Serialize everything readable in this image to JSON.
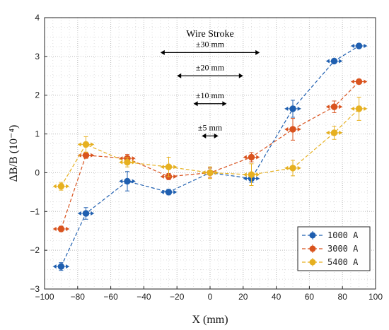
{
  "chart_data": {
    "type": "scatter",
    "title": "",
    "xlabel": "X (mm)",
    "ylabel": "ΔB/B (10⁻⁴)",
    "xlim": [
      -100,
      100
    ],
    "ylim": [
      -3,
      4
    ],
    "x_ticks": [
      "−100",
      "−80",
      "−60",
      "−40",
      "−20",
      "0",
      "20",
      "40",
      "60",
      "80",
      "100"
    ],
    "y_ticks": [
      "−3",
      "−2",
      "−1",
      "0",
      "1",
      "2",
      "3",
      "4"
    ],
    "grid": "dotted-minor",
    "legend_position": "bottom-right",
    "x": [
      -90,
      -75,
      -50,
      -25,
      0,
      25,
      50,
      75,
      90
    ],
    "series": [
      {
        "name": "1000 A",
        "color": "#1f5fb0",
        "values": [
          -2.42,
          -1.05,
          -0.22,
          -0.5,
          0.0,
          -0.15,
          1.65,
          2.88,
          3.27
        ],
        "yerr": [
          0.1,
          0.15,
          0.25,
          0.07,
          0.12,
          0.1,
          0.22,
          0.05,
          0.05
        ]
      },
      {
        "name": "3000 A",
        "color": "#d9531e",
        "values": [
          -1.45,
          0.45,
          0.37,
          -0.1,
          0.0,
          0.4,
          1.12,
          1.7,
          2.35
        ],
        "yerr": [
          0.07,
          0.08,
          0.1,
          0.08,
          0.12,
          0.12,
          0.28,
          0.15,
          0.05
        ]
      },
      {
        "name": "5400 A",
        "color": "#e6b020",
        "values": [
          -0.35,
          0.73,
          0.27,
          0.15,
          0.0,
          -0.05,
          0.12,
          1.03,
          1.65
        ],
        "yerr": [
          0.1,
          0.2,
          0.12,
          0.25,
          0.15,
          0.28,
          0.2,
          0.17,
          0.3
        ]
      }
    ],
    "xerr": 5,
    "annotations": {
      "title": "Wire Stroke",
      "strokes": [
        {
          "label": "±30 mm",
          "half_width": 30,
          "y": 3.1
        },
        {
          "label": "±20 mm",
          "half_width": 20,
          "y": 2.5
        },
        {
          "label": "±10 mm",
          "half_width": 10,
          "y": 1.78
        },
        {
          "label": "±5 mm",
          "half_width": 5,
          "y": 0.95
        }
      ]
    }
  }
}
